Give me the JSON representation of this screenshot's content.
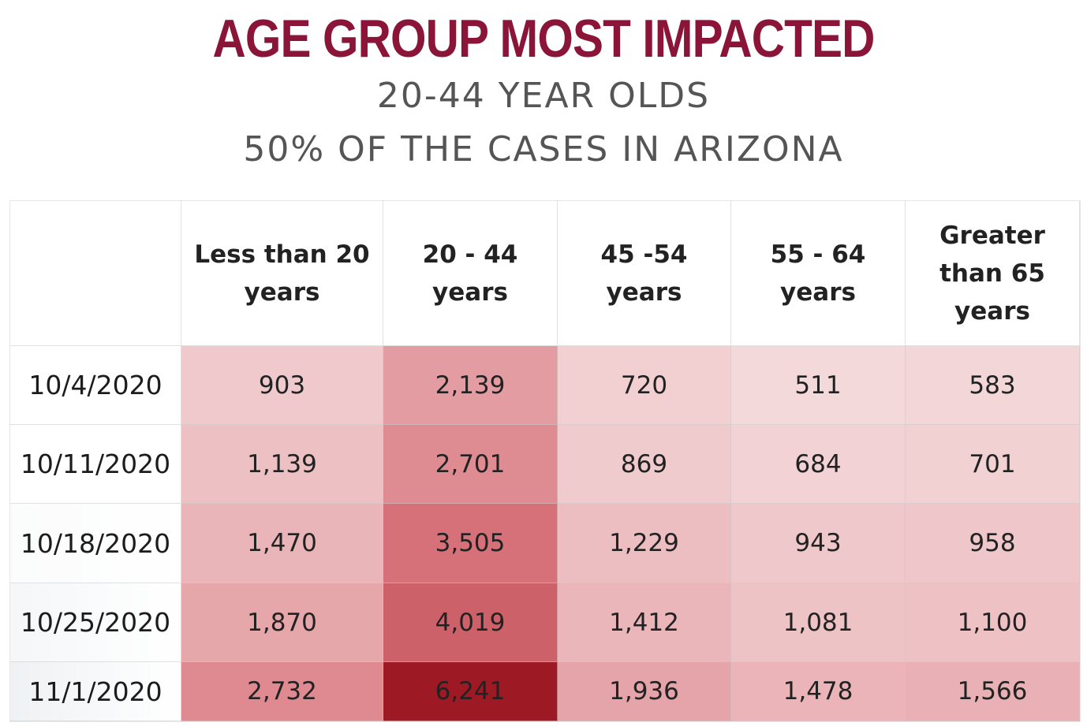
{
  "title": "AGE GROUP MOST IMPACTED",
  "subtitle_line1": "20-44 YEAR OLDS",
  "subtitle_line2": "50% OF THE CASES IN ARIZONA",
  "chart_data": {
    "type": "table",
    "title": "AGE GROUP MOST IMPACTED",
    "columns": [
      "Less than 20 years",
      "20 - 44 years",
      "45 -54 years",
      "55 - 64 years",
      "Greater than 65 years"
    ],
    "rows": [
      "10/4/2020",
      "10/11/2020",
      "10/18/2020",
      "10/25/2020",
      "11/1/2020"
    ],
    "values": [
      [
        "903",
        "2,139",
        "720",
        "511",
        "583"
      ],
      [
        "1,139",
        "2,701",
        "869",
        "684",
        "701"
      ],
      [
        "1,470",
        "3,505",
        "1,229",
        "943",
        "958"
      ],
      [
        "1,870",
        "4,019",
        "1,412",
        "1,081",
        "1,100"
      ],
      [
        "2,732",
        "6,241",
        "1,936",
        "1,478",
        "1,566"
      ]
    ],
    "heat_color": "#c0202c"
  }
}
